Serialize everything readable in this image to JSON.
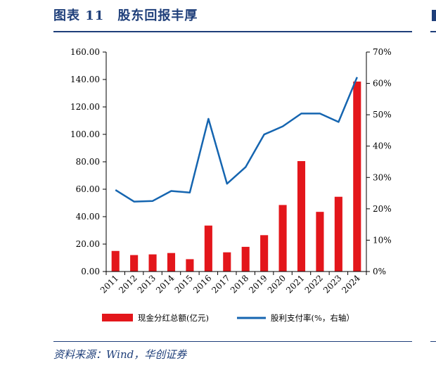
{
  "figure": {
    "title": "图表 11　股东回报丰厚",
    "source": "资料来源：Wind，华创证券"
  },
  "colors": {
    "bar": "#e3161b",
    "line": "#1565b0",
    "title": "#1f3f7a"
  },
  "chart_data": {
    "type": "bar",
    "title": "",
    "categories": [
      "2011",
      "2012",
      "2013",
      "2014",
      "2015",
      "2016",
      "2017",
      "2018",
      "2019",
      "2020",
      "2021",
      "2022",
      "2023",
      "2024"
    ],
    "series": [
      {
        "name": "现金分红总额(亿元)",
        "type": "bar",
        "axis": "left",
        "values": [
          15.0,
          12.0,
          12.5,
          13.5,
          9.0,
          33.5,
          14.0,
          18.0,
          26.5,
          48.5,
          80.5,
          43.5,
          54.5,
          138.5
        ]
      },
      {
        "name": "股利支付率(%，右轴）",
        "type": "line",
        "axis": "right",
        "values": [
          26.0,
          22.3,
          22.5,
          25.7,
          25.2,
          48.7,
          28.0,
          33.3,
          43.7,
          46.3,
          50.4,
          50.4,
          47.7,
          62.0
        ]
      }
    ],
    "y_left": {
      "ylim": [
        0,
        160
      ],
      "ticks": [
        "0.00",
        "20.00",
        "40.00",
        "60.00",
        "80.00",
        "100.00",
        "120.00",
        "140.00",
        "160.00"
      ]
    },
    "y_right": {
      "ylim": [
        0,
        70
      ],
      "ticks": [
        "0%",
        "10%",
        "20%",
        "30%",
        "40%",
        "50%",
        "60%",
        "70%"
      ]
    },
    "grid": false,
    "legend": "bottom"
  }
}
